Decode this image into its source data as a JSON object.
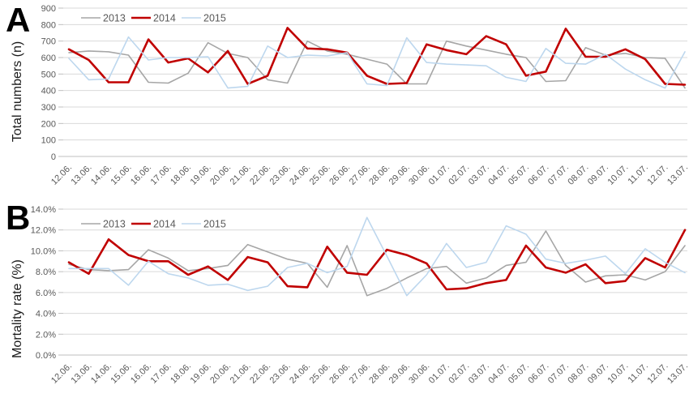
{
  "figure": {
    "panels": [
      {
        "panel_label": "A",
        "y_axis_title": "Total numbers (n)"
      },
      {
        "panel_label": "B",
        "y_axis_title": "Mortality rate (%)"
      }
    ]
  },
  "chart_data": [
    {
      "type": "line",
      "panel": "A",
      "ylabel": "Total numbers (n)",
      "xlabel": "",
      "ylim": [
        0,
        900
      ],
      "ytick_step": 100,
      "ytick_labels": [
        "900",
        "800",
        "700",
        "600",
        "500",
        "400",
        "300",
        "200",
        "100",
        "0"
      ],
      "grid": true,
      "legend_position": "top-left-inside",
      "legend_entries": [
        "2013",
        "2014",
        "2015"
      ],
      "categories": [
        "12.06.",
        "13.06.",
        "14.06.",
        "15.06.",
        "16.06.",
        "17.06.",
        "18.06.",
        "19.06.",
        "20.06.",
        "21.06.",
        "22.06.",
        "23.06.",
        "24.06.",
        "25.06.",
        "26.06.",
        "27.06.",
        "28.06.",
        "29.06.",
        "30.06.",
        "01.07.",
        "02.07.",
        "03.07.",
        "04.07.",
        "05.07.",
        "06.07.",
        "07.07.",
        "08.07.",
        "09.07.",
        "10.07.",
        "11.07.",
        "12.07.",
        "13.07."
      ],
      "series": [
        {
          "name": "2013",
          "color": "#a6a6a6",
          "stroke_width": 1.6,
          "values": [
            630,
            640,
            635,
            615,
            450,
            445,
            505,
            690,
            625,
            600,
            465,
            445,
            700,
            640,
            620,
            590,
            560,
            440,
            440,
            700,
            670,
            645,
            620,
            600,
            455,
            460,
            660,
            615,
            625,
            600,
            595,
            415
          ]
        },
        {
          "name": "2014",
          "color": "#c00000",
          "stroke_width": 2.6,
          "values": [
            650,
            585,
            450,
            450,
            710,
            570,
            595,
            510,
            640,
            440,
            490,
            780,
            655,
            650,
            630,
            490,
            440,
            445,
            680,
            645,
            620,
            730,
            680,
            490,
            515,
            775,
            605,
            605,
            650,
            590,
            440,
            435
          ]
        },
        {
          "name": "2015",
          "color": "#bdd7ee",
          "stroke_width": 1.6,
          "values": [
            595,
            465,
            470,
            725,
            585,
            600,
            600,
            605,
            415,
            425,
            670,
            600,
            615,
            610,
            630,
            440,
            430,
            720,
            570,
            560,
            555,
            550,
            480,
            455,
            655,
            565,
            560,
            620,
            530,
            465,
            415,
            635
          ]
        }
      ]
    },
    {
      "type": "line",
      "panel": "B",
      "ylabel": "Mortality rate (%)",
      "xlabel": "",
      "ylim": [
        0,
        14
      ],
      "ytick_step": 2,
      "ytick_labels": [
        "14.0%",
        "12.0%",
        "10.0%",
        "8.0%",
        "6.0%",
        "4.0%",
        "2.0%",
        "0.0%"
      ],
      "grid": true,
      "legend_position": "top-left-inside",
      "legend_entries": [
        "2013",
        "2014",
        "2015"
      ],
      "categories": [
        "12.06.",
        "13.06.",
        "14.06.",
        "15.06.",
        "16.06.",
        "17.06.",
        "18.06.",
        "19.06.",
        "20.06.",
        "21.06.",
        "22.06.",
        "23.06.",
        "24.06.",
        "25.06.",
        "26.06.",
        "27.06.",
        "28.06.",
        "29.06.",
        "30.06.",
        "01.07.",
        "02.07.",
        "03.07.",
        "04.07.",
        "05.07.",
        "06.07.",
        "07.07.",
        "08.07.",
        "09.07.",
        "10.07.",
        "11.07.",
        "12.07.",
        "13.07."
      ],
      "series": [
        {
          "name": "2013",
          "color": "#a6a6a6",
          "stroke_width": 1.6,
          "values": [
            8.7,
            8.2,
            8.1,
            8.2,
            10.1,
            9.3,
            8.1,
            8.3,
            8.6,
            10.6,
            9.9,
            9.2,
            8.8,
            6.5,
            10.5,
            5.7,
            6.4,
            7.4,
            8.3,
            8.5,
            6.9,
            7.4,
            8.6,
            8.9,
            11.9,
            8.6,
            7.0,
            7.6,
            7.7,
            7.2,
            8.0,
            10.5
          ]
        },
        {
          "name": "2014",
          "color": "#c00000",
          "stroke_width": 2.6,
          "values": [
            8.9,
            7.8,
            11.1,
            9.6,
            9.0,
            9.0,
            7.7,
            8.5,
            7.2,
            9.4,
            8.9,
            6.6,
            6.5,
            10.4,
            7.9,
            7.7,
            10.1,
            9.6,
            8.8,
            6.3,
            6.4,
            6.9,
            7.2,
            10.5,
            8.4,
            7.9,
            8.7,
            6.9,
            7.1,
            9.3,
            8.4,
            12.0
          ]
        },
        {
          "name": "2015",
          "color": "#bdd7ee",
          "stroke_width": 1.6,
          "values": [
            8.3,
            8.3,
            8.3,
            6.7,
            9.0,
            7.8,
            7.4,
            6.7,
            6.8,
            6.2,
            6.6,
            8.4,
            8.8,
            7.9,
            8.5,
            13.2,
            9.5,
            5.7,
            7.7,
            10.7,
            8.4,
            8.9,
            12.4,
            11.6,
            9.2,
            8.8,
            9.1,
            9.5,
            7.8,
            10.2,
            8.9,
            7.9
          ]
        }
      ]
    }
  ],
  "colors": {
    "gridline": "#d9d9d9",
    "axis_line": "#bfbfbf",
    "tick_text": "#595959",
    "series_2013": "#a6a6a6",
    "series_2014": "#c00000",
    "series_2015": "#bdd7ee"
  }
}
